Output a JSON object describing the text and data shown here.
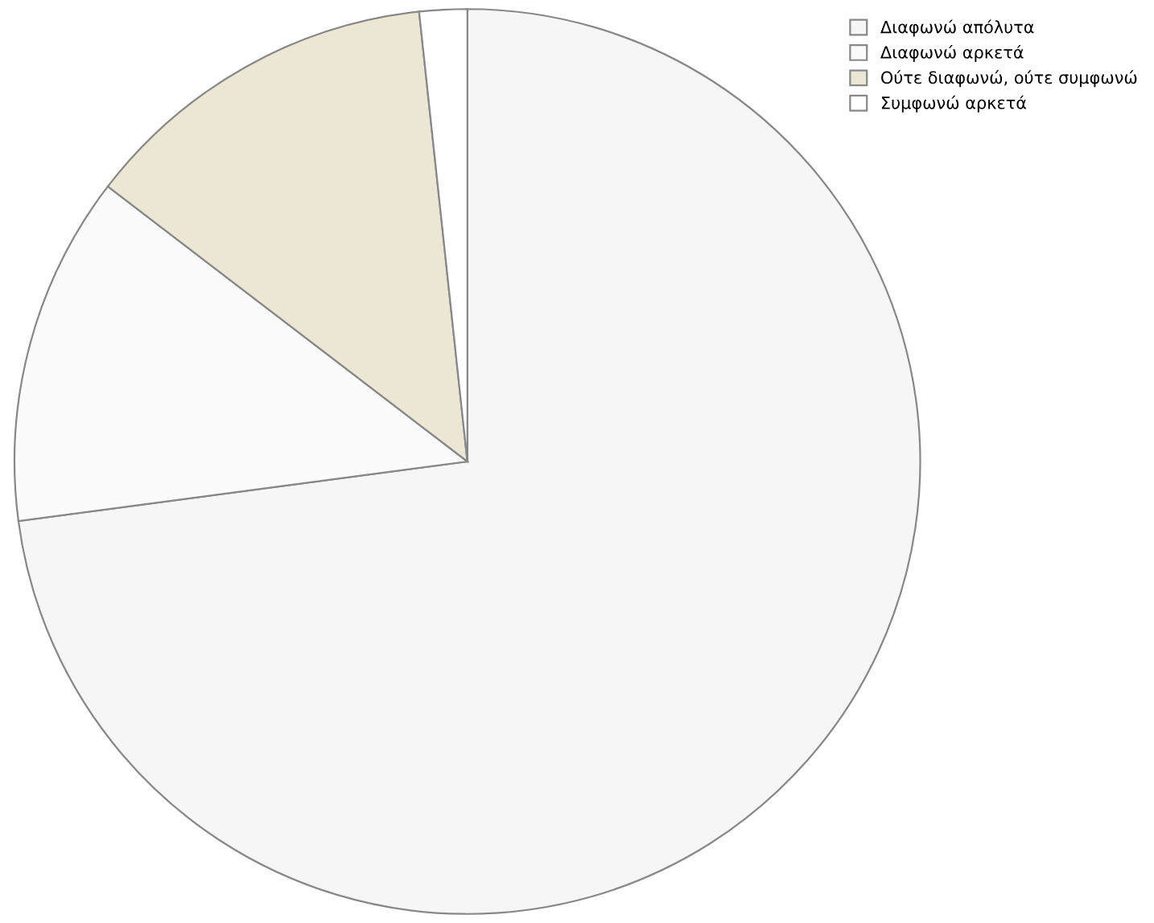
{
  "chart_data": {
    "type": "pie",
    "categories": [
      "Διαφωνώ απόλυτα",
      "Διαφωνώ αρκετά",
      "Ούτε διαφωνώ, ούτε συμφωνώ",
      "Συμφωνώ αρκετά"
    ],
    "values": [
      72.9,
      12.5,
      12.9,
      1.7
    ],
    "colors": [
      "#f6f6f6",
      "#fbfbfb",
      "#ece6d4",
      "#ffffff"
    ],
    "legend": "top right"
  }
}
